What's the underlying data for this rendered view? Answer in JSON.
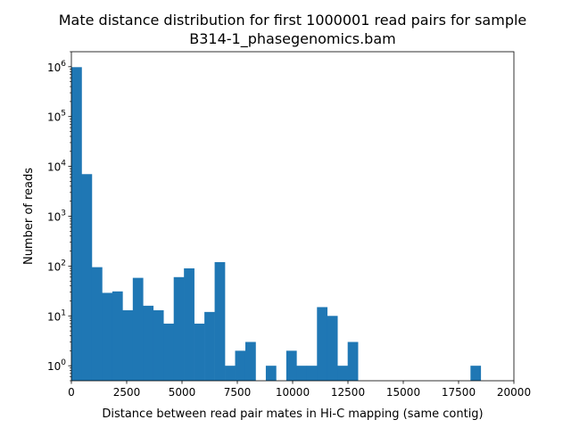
{
  "chart_data": {
    "type": "bar",
    "title_line1": "Mate distance distribution for first 1000001 read pairs for sample",
    "title_line2": "B314-1_phasegenomics.bam",
    "xlabel": "Distance between read pair mates in Hi-C mapping (same contig)",
    "ylabel": "Number of reads",
    "xlim": [
      0,
      20000
    ],
    "ylim": [
      0.5,
      2000000
    ],
    "yscale": "log",
    "xticks": [
      0,
      2500,
      5000,
      7500,
      10000,
      12500,
      15000,
      17500,
      20000
    ],
    "xtick_labels": [
      "0",
      "2500",
      "5000",
      "7500",
      "10000",
      "12500",
      "15000",
      "17500",
      "20000"
    ],
    "yticks": [
      {
        "value": 1,
        "base": "10",
        "exp": "0"
      },
      {
        "value": 10,
        "base": "10",
        "exp": "1"
      },
      {
        "value": 100,
        "base": "10",
        "exp": "2"
      },
      {
        "value": 1000,
        "base": "10",
        "exp": "3"
      },
      {
        "value": 10000,
        "base": "10",
        "exp": "4"
      },
      {
        "value": 100000,
        "base": "10",
        "exp": "5"
      },
      {
        "value": 1000000,
        "base": "10",
        "exp": "6"
      }
    ],
    "bar_color": "#1f77b4",
    "bins": {
      "start": 0,
      "width": 462.5
    },
    "values": [
      980000,
      7000,
      95,
      29,
      31,
      13,
      58,
      16,
      13,
      7,
      60,
      90,
      7,
      12,
      120,
      1,
      2,
      3,
      0,
      1,
      0,
      2,
      1,
      1,
      15,
      10,
      1,
      3,
      0,
      0,
      0,
      0,
      0,
      0,
      0,
      0,
      0,
      0,
      0,
      1
    ]
  }
}
